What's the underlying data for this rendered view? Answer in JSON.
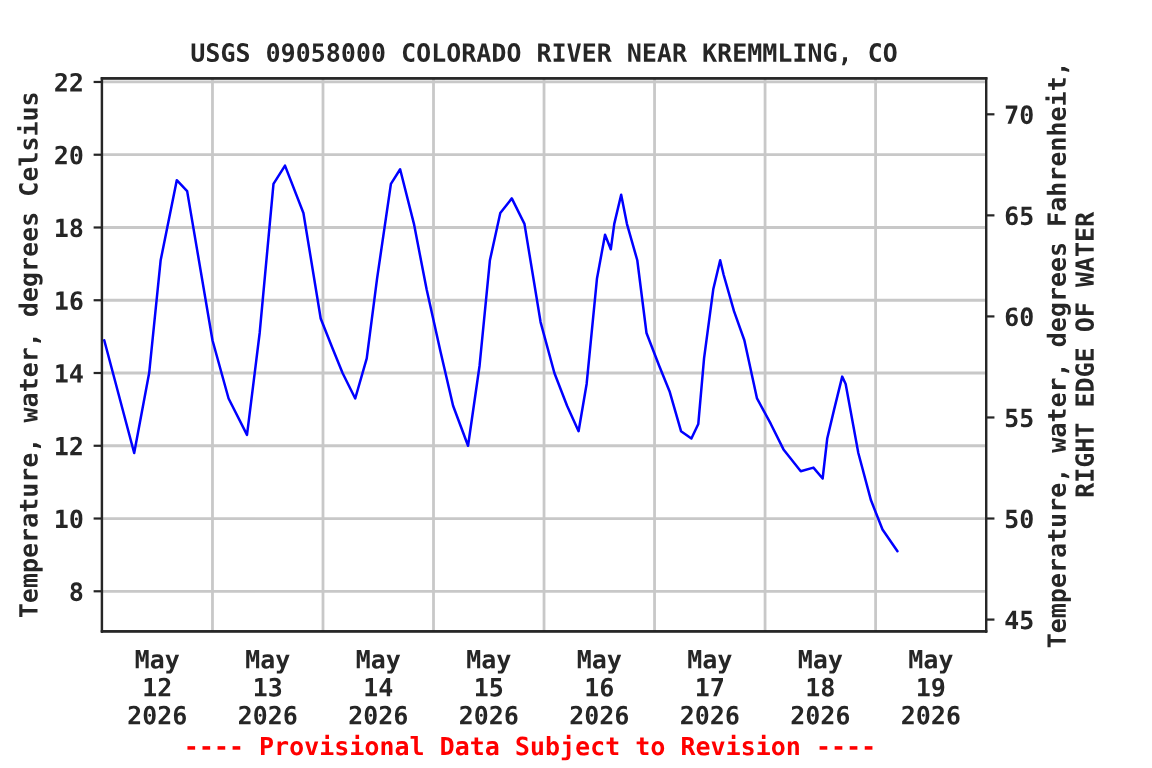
{
  "chart_data": {
    "type": "line",
    "title": "USGS 09058000 COLORADO RIVER NEAR KREMMLING, CO",
    "ylabel": "Temperature, water, degrees Celsius",
    "y2label": "Temperature, water, degrees Fahrenheit,\nRIGHT EDGE OF WATER",
    "annotations": [
      "---- Provisional Data Subject to Revision ----"
    ],
    "xlim": [
      "2026-05-12T00:00",
      "2026-05-20T00:00"
    ],
    "xticks": [
      {
        "value": "2026-05-12T12:00",
        "label": "May\n12\n2026"
      },
      {
        "value": "2026-05-13T12:00",
        "label": "May\n13\n2026"
      },
      {
        "value": "2026-05-14T12:00",
        "label": "May\n14\n2026"
      },
      {
        "value": "2026-05-15T12:00",
        "label": "May\n15\n2026"
      },
      {
        "value": "2026-05-16T12:00",
        "label": "May\n16\n2026"
      },
      {
        "value": "2026-05-17T12:00",
        "label": "May\n17\n2026"
      },
      {
        "value": "2026-05-18T12:00",
        "label": "May\n18\n2026"
      },
      {
        "value": "2026-05-19T12:00",
        "label": "May\n19\n2026"
      },
      {
        "value": "2026-05-13T00:00",
        "label": null
      },
      {
        "value": "2026-05-14T00:00",
        "label": null
      },
      {
        "value": "2026-05-15T00:00",
        "label": null
      },
      {
        "value": "2026-05-16T00:00",
        "label": null
      },
      {
        "value": "2026-05-17T00:00",
        "label": null
      },
      {
        "value": "2026-05-18T00:00",
        "label": null
      },
      {
        "value": "2026-05-19T00:00",
        "label": null
      }
    ],
    "ylim": [
      6.9,
      22.1
    ],
    "yticks": [
      8,
      10,
      12,
      14,
      16,
      18,
      20,
      22
    ],
    "y2lim": [
      44.42,
      71.78
    ],
    "y2ticks": [
      45,
      50,
      55,
      60,
      65,
      70
    ],
    "grid": true,
    "marker": "none",
    "line_style": "solid",
    "series": [
      {
        "color": "#0000ff",
        "x": [
          "2026-05-12T00:30",
          "2026-05-12T07:00",
          "2026-05-12T10:15",
          "2026-05-12T12:45",
          "2026-05-12T16:15",
          "2026-05-12T18:30",
          "2026-05-13T00:00",
          "2026-05-13T03:30",
          "2026-05-13T07:30",
          "2026-05-13T10:15",
          "2026-05-13T13:15",
          "2026-05-13T15:45",
          "2026-05-13T19:45",
          "2026-05-13T23:30",
          "2026-05-14T02:00",
          "2026-05-14T04:15",
          "2026-05-14T07:00",
          "2026-05-14T09:30",
          "2026-05-14T11:45",
          "2026-05-14T14:45",
          "2026-05-14T16:45",
          "2026-05-14T19:45",
          "2026-05-14T22:30",
          "2026-05-15T01:30",
          "2026-05-15T04:15",
          "2026-05-15T07:30",
          "2026-05-15T10:00",
          "2026-05-15T12:15",
          "2026-05-15T14:30",
          "2026-05-15T17:00",
          "2026-05-15T19:45",
          "2026-05-15T23:15",
          "2026-05-16T02:15",
          "2026-05-16T05:00",
          "2026-05-16T07:30",
          "2026-05-16T09:15",
          "2026-05-16T11:30",
          "2026-05-16T13:15",
          "2026-05-16T14:30",
          "2026-05-16T15:15",
          "2026-05-16T16:45",
          "2026-05-16T18:00",
          "2026-05-16T20:15",
          "2026-05-16T22:15",
          "2026-05-17T01:00",
          "2026-05-17T03:15",
          "2026-05-17T05:45",
          "2026-05-17T08:00",
          "2026-05-17T09:30",
          "2026-05-17T10:45",
          "2026-05-17T12:45",
          "2026-05-17T14:15",
          "2026-05-17T15:00",
          "2026-05-17T17:15",
          "2026-05-17T19:30",
          "2026-05-17T22:15",
          "2026-05-18T01:15",
          "2026-05-18T04:00",
          "2026-05-18T07:45",
          "2026-05-18T10:30",
          "2026-05-18T12:30",
          "2026-05-18T13:30",
          "2026-05-18T15:00",
          "2026-05-18T16:45",
          "2026-05-18T17:30",
          "2026-05-18T20:15",
          "2026-05-18T23:00",
          "2026-05-19T01:30",
          "2026-05-19T04:45"
        ],
        "values": [
          14.9,
          11.8,
          14.0,
          17.1,
          19.3,
          19.0,
          14.9,
          13.3,
          12.3,
          15.1,
          19.2,
          19.7,
          18.4,
          15.5,
          14.7,
          14.0,
          13.3,
          14.4,
          16.6,
          19.2,
          19.6,
          18.1,
          16.3,
          14.6,
          13.1,
          12.0,
          14.2,
          17.1,
          18.4,
          18.8,
          18.1,
          15.4,
          14.0,
          13.1,
          12.4,
          13.7,
          16.6,
          17.8,
          17.4,
          18.1,
          18.9,
          18.1,
          17.1,
          15.1,
          14.2,
          13.5,
          12.4,
          12.2,
          12.6,
          14.4,
          16.3,
          17.1,
          16.7,
          15.7,
          14.9,
          13.3,
          12.6,
          11.9,
          11.3,
          11.4,
          11.1,
          12.2,
          13.0,
          13.9,
          13.7,
          11.8,
          10.5,
          9.7,
          9.1
        ]
      }
    ]
  }
}
